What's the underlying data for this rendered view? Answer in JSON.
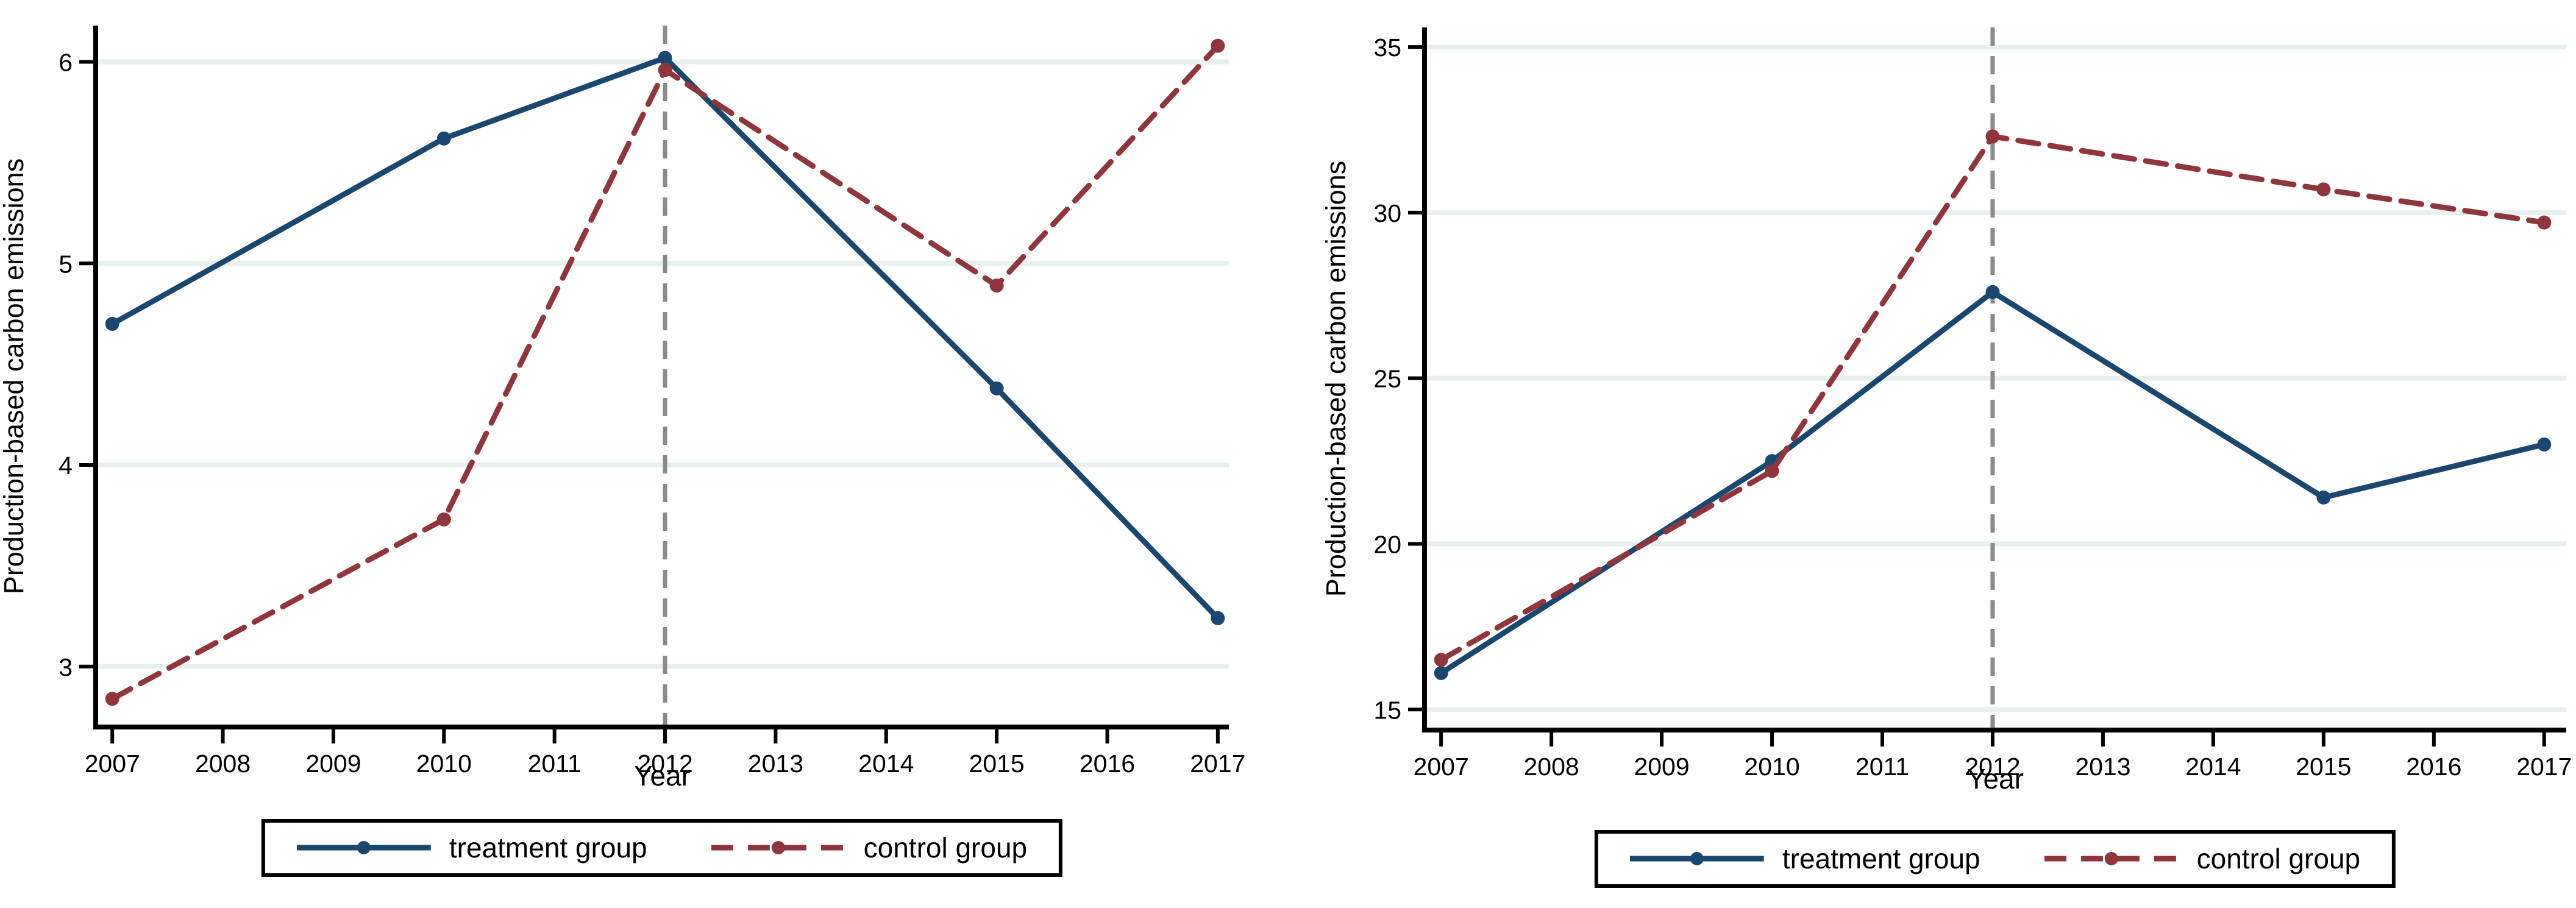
{
  "style": {
    "background": "#ffffff",
    "axis_color": "#000000",
    "grid_color": "#e8f0ef",
    "vline_color": "#8a8a8a",
    "text_color": "#000000",
    "treatment_color": "#1a476f",
    "control_color": "#90353b",
    "legend_border_color": "#000000"
  },
  "chart_data": [
    {
      "type": "line",
      "title": "",
      "xlabel": "Year",
      "ylabel": "Production-based carbon emissions",
      "x": [
        2007,
        2010,
        2012,
        2015,
        2017
      ],
      "series": [
        {
          "name": "treatment group",
          "color": "#1a476f",
          "line_style": "solid",
          "marker": "circle",
          "values": [
            4.7,
            5.62,
            6.02,
            4.38,
            3.24
          ]
        },
        {
          "name": "control group",
          "color": "#90353b",
          "line_style": "dashed",
          "marker": "circle",
          "values": [
            2.84,
            3.73,
            5.96,
            4.89,
            6.08
          ]
        }
      ],
      "xticks": [
        2007,
        2008,
        2009,
        2010,
        2011,
        2012,
        2013,
        2014,
        2015,
        2016,
        2017
      ],
      "yticks": [
        3,
        4,
        5,
        6
      ],
      "xlim": [
        2006.85,
        2017.1
      ],
      "ylim": [
        2.7,
        6.18
      ],
      "vline_x": 2012,
      "grid": true,
      "legend_position": "bottom-center",
      "legend": [
        "treatment group",
        "control group"
      ]
    },
    {
      "type": "line",
      "title": "",
      "xlabel": "Year",
      "ylabel": "Production-based carbon emissions",
      "x": [
        2007,
        2010,
        2012,
        2015,
        2017
      ],
      "series": [
        {
          "name": "treatment group",
          "color": "#1a476f",
          "line_style": "solid",
          "marker": "circle",
          "values": [
            16.1,
            22.5,
            27.6,
            21.4,
            23.0
          ]
        },
        {
          "name": "control group",
          "color": "#90353b",
          "line_style": "dashed",
          "marker": "circle",
          "values": [
            16.5,
            22.2,
            32.3,
            30.7,
            29.7
          ]
        }
      ],
      "xticks": [
        2007,
        2008,
        2009,
        2010,
        2011,
        2012,
        2013,
        2014,
        2015,
        2016,
        2017
      ],
      "yticks": [
        15,
        20,
        25,
        30,
        35
      ],
      "xlim": [
        2006.85,
        2017.2
      ],
      "ylim": [
        14.38,
        35.59
      ],
      "vline_x": 2012,
      "grid": true,
      "legend_position": "bottom-center",
      "legend": [
        "treatment group",
        "control group"
      ]
    }
  ]
}
